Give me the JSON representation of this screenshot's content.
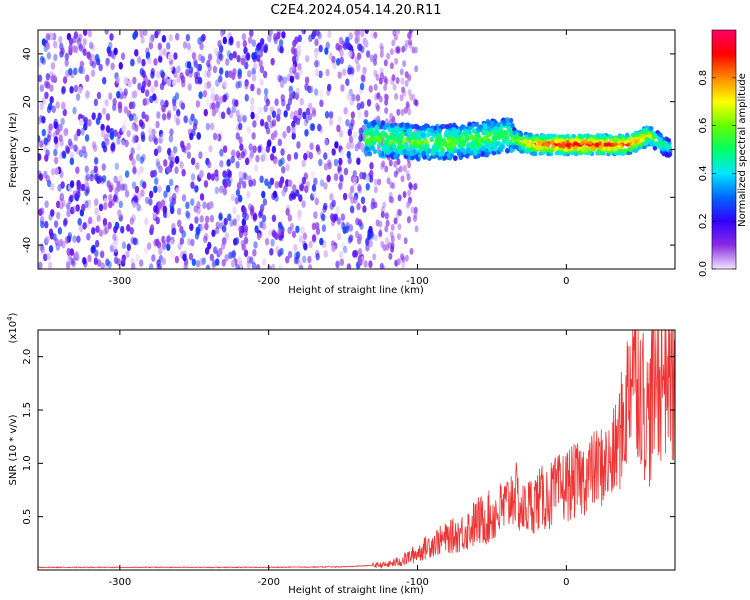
{
  "figure": {
    "title": "C2E4.2024.054.14.20.R11"
  },
  "chart_data": [
    {
      "type": "heatmap",
      "xlabel": "Height of straight line (km)",
      "ylabel": "Frequency (Hz)",
      "xlim": [
        -355,
        73
      ],
      "ylim": [
        -50,
        50
      ],
      "x_ticks": [
        -300,
        -200,
        -100,
        0
      ],
      "y_ticks": [
        -40,
        -20,
        0,
        20,
        40
      ],
      "colorbar": {
        "label": "Normalized spectral amplitude",
        "range": [
          0,
          1
        ],
        "ticks": [
          0.0,
          0.2,
          0.4,
          0.6,
          0.8
        ],
        "colormap": [
          "#f2e6ff",
          "#8a2be2",
          "#3300ff",
          "#0066ff",
          "#00e5ff",
          "#00ff66",
          "#66ff00",
          "#ffff00",
          "#ff8800",
          "#ff0000",
          "#ff0066"
        ]
      },
      "regions": [
        {
          "x_range": [
            -355,
            -130
          ],
          "freq_range": [
            -50,
            50
          ],
          "amplitude": 0.12,
          "pattern": "noise"
        },
        {
          "x_range": [
            -130,
            -100
          ],
          "freq_range": [
            -50,
            50
          ],
          "amplitude": 0.05,
          "pattern": "faint noise"
        },
        {
          "x_range": [
            -135,
            -35
          ],
          "freq_range": [
            -6,
            12
          ],
          "amplitude": 0.35,
          "pattern": "signal band"
        },
        {
          "x_range": [
            -35,
            70
          ],
          "freq_range": [
            -2,
            8
          ],
          "amplitude": 0.8,
          "pattern": "strong narrow signal"
        }
      ],
      "ridge": {
        "x": [
          -135,
          -120,
          -100,
          -80,
          -60,
          -40,
          -30,
          -20,
          -10,
          0,
          10,
          20,
          30,
          40,
          50,
          55,
          60,
          65,
          70
        ],
        "freq": [
          5,
          4,
          3,
          3,
          4,
          6,
          3,
          2,
          2,
          2,
          2,
          2,
          2,
          2,
          4,
          6,
          4,
          2,
          1
        ],
        "amplitude": [
          0.35,
          0.4,
          0.45,
          0.5,
          0.5,
          0.55,
          0.7,
          0.85,
          0.9,
          0.95,
          0.95,
          0.9,
          0.9,
          0.85,
          0.8,
          0.7,
          0.6,
          0.5,
          0.45
        ]
      }
    },
    {
      "type": "line",
      "xlabel": "Height of straight line (km)",
      "ylabel": "SNR (10 * v/v)",
      "y_multiplier": "(x10",
      "y_multiplier_exp": "4",
      "y_multiplier_close": ")",
      "xlim": [
        -355,
        73
      ],
      "ylim": [
        0,
        22500
      ],
      "x_ticks": [
        -300,
        -200,
        -100,
        0
      ],
      "y_ticks": [
        0.5,
        1.0,
        1.5,
        2.0
      ],
      "y_tick_labels": [
        "0.5",
        "1.0",
        "1.5",
        "2.0"
      ],
      "color": "#ee3333",
      "series": [
        {
          "x": [
            -355,
            -300,
            -250,
            -200,
            -150,
            -120,
            -110,
            -100,
            -90,
            -80,
            -70,
            -60,
            -50,
            -40,
            -35,
            -30,
            -20,
            -10,
            0,
            10,
            20,
            30,
            35,
            40,
            45,
            50,
            55,
            60,
            65,
            70,
            73
          ],
          "y": [
            250,
            250,
            250,
            250,
            300,
            500,
            900,
            1600,
            2500,
            3000,
            3500,
            4500,
            5000,
            6000,
            7500,
            5500,
            6500,
            7000,
            8000,
            8500,
            9500,
            10000,
            12000,
            15000,
            21000,
            17000,
            14000,
            18000,
            19000,
            20000,
            16000
          ],
          "amplitude_envelope": [
            0,
            0,
            0,
            0,
            100,
            300,
            600,
            900,
            1300,
            1500,
            1900,
            2400,
            2600,
            3000,
            3300,
            2600,
            3000,
            3300,
            3500,
            3600,
            3800,
            4200,
            5000,
            6500,
            9000,
            7500,
            7000,
            8500,
            9000,
            9500,
            8000
          ]
        }
      ]
    }
  ]
}
